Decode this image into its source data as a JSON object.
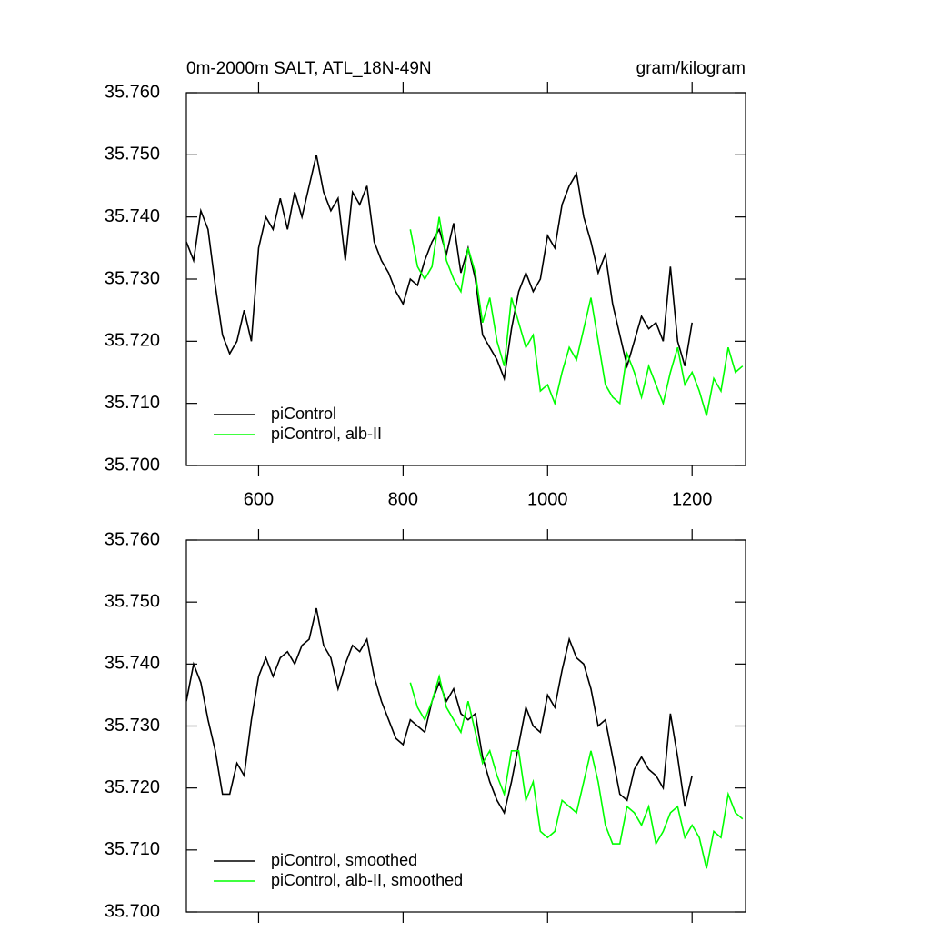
{
  "chart_data": [
    {
      "type": "line",
      "title": "0m-2000m SALT, ATL_18N-49N",
      "units": "gram/kilogram",
      "xlim": [
        500,
        1274
      ],
      "xticks": [
        600,
        800,
        1000,
        1200
      ],
      "show_xtick_labels": true,
      "ylim": [
        35.7,
        35.76
      ],
      "yticks": [
        {
          "value": 35.7,
          "label": "35.700"
        },
        {
          "value": 35.71,
          "label": "35.710"
        },
        {
          "value": 35.72,
          "label": "35.720"
        },
        {
          "value": 35.73,
          "label": "35.730"
        },
        {
          "value": 35.74,
          "label": "35.740"
        },
        {
          "value": 35.75,
          "label": "35.750"
        },
        {
          "value": 35.76,
          "label": "35.760"
        }
      ],
      "legend": "lower left",
      "series": [
        {
          "name": "piControl",
          "color": "#000000",
          "x": [
            500,
            510,
            520,
            530,
            540,
            550,
            560,
            570,
            580,
            590,
            600,
            610,
            620,
            630,
            640,
            650,
            660,
            670,
            680,
            690,
            700,
            710,
            720,
            730,
            740,
            750,
            760,
            770,
            780,
            790,
            800,
            810,
            820,
            830,
            840,
            850,
            860,
            870,
            880,
            890,
            900,
            910,
            920,
            930,
            940,
            950,
            960,
            970,
            980,
            990,
            1000,
            1010,
            1020,
            1030,
            1040,
            1050,
            1060,
            1070,
            1080,
            1090,
            1100,
            1110,
            1120,
            1130,
            1140,
            1150,
            1160,
            1170,
            1180,
            1190,
            1200
          ],
          "values": [
            35.736,
            35.733,
            35.741,
            35.738,
            35.729,
            35.721,
            35.718,
            35.72,
            35.725,
            35.72,
            35.735,
            35.74,
            35.738,
            35.743,
            35.738,
            35.744,
            35.74,
            35.745,
            35.75,
            35.744,
            35.741,
            35.743,
            35.733,
            35.744,
            35.742,
            35.745,
            35.736,
            35.733,
            35.731,
            35.728,
            35.726,
            35.73,
            35.729,
            35.733,
            35.736,
            35.738,
            35.734,
            35.739,
            35.731,
            35.735,
            35.73,
            35.721,
            35.719,
            35.717,
            35.714,
            35.722,
            35.728,
            35.731,
            35.728,
            35.73,
            35.737,
            35.735,
            35.742,
            35.745,
            35.747,
            35.74,
            35.736,
            35.731,
            35.734,
            35.726,
            35.721,
            35.716,
            35.72,
            35.724,
            35.722,
            35.723,
            35.72,
            35.732,
            35.72,
            35.716,
            35.723
          ]
        },
        {
          "name": "piControl, alb-II",
          "color": "#00ff00",
          "x": [
            810,
            820,
            830,
            840,
            850,
            860,
            870,
            880,
            890,
            900,
            910,
            920,
            930,
            940,
            950,
            960,
            970,
            980,
            990,
            1000,
            1010,
            1020,
            1030,
            1040,
            1050,
            1060,
            1070,
            1080,
            1090,
            1100,
            1110,
            1120,
            1130,
            1140,
            1150,
            1160,
            1170,
            1180,
            1190,
            1200,
            1210,
            1220,
            1230,
            1240,
            1250,
            1260,
            1270
          ],
          "values": [
            35.738,
            35.732,
            35.73,
            35.732,
            35.74,
            35.733,
            35.73,
            35.728,
            35.735,
            35.731,
            35.723,
            35.727,
            35.72,
            35.716,
            35.727,
            35.723,
            35.719,
            35.721,
            35.712,
            35.713,
            35.71,
            35.715,
            35.719,
            35.717,
            35.722,
            35.727,
            35.72,
            35.713,
            35.711,
            35.71,
            35.718,
            35.715,
            35.711,
            35.716,
            35.713,
            35.71,
            35.715,
            35.719,
            35.713,
            35.715,
            35.712,
            35.708,
            35.714,
            35.712,
            35.719,
            35.715,
            35.716
          ]
        }
      ]
    },
    {
      "type": "line",
      "xlim": [
        500,
        1274
      ],
      "xticks": [
        600,
        800,
        1000,
        1200
      ],
      "show_xtick_labels": false,
      "ylim": [
        35.7,
        35.76
      ],
      "yticks": [
        {
          "value": 35.7,
          "label": "35.700"
        },
        {
          "value": 35.71,
          "label": "35.710"
        },
        {
          "value": 35.72,
          "label": "35.720"
        },
        {
          "value": 35.73,
          "label": "35.730"
        },
        {
          "value": 35.74,
          "label": "35.740"
        },
        {
          "value": 35.75,
          "label": "35.750"
        },
        {
          "value": 35.76,
          "label": "35.760"
        }
      ],
      "legend": "lower left",
      "series": [
        {
          "name": "piControl, smoothed",
          "color": "#000000",
          "x": [
            500,
            510,
            520,
            530,
            540,
            550,
            560,
            570,
            580,
            590,
            600,
            610,
            620,
            630,
            640,
            650,
            660,
            670,
            680,
            690,
            700,
            710,
            720,
            730,
            740,
            750,
            760,
            770,
            780,
            790,
            800,
            810,
            820,
            830,
            840,
            850,
            860,
            870,
            880,
            890,
            900,
            910,
            920,
            930,
            940,
            950,
            960,
            970,
            980,
            990,
            1000,
            1010,
            1020,
            1030,
            1040,
            1050,
            1060,
            1070,
            1080,
            1090,
            1100,
            1110,
            1120,
            1130,
            1140,
            1150,
            1160,
            1170,
            1180,
            1190,
            1200
          ],
          "values": [
            35.734,
            35.74,
            35.737,
            35.731,
            35.726,
            35.719,
            35.719,
            35.724,
            35.722,
            35.731,
            35.738,
            35.741,
            35.738,
            35.741,
            35.742,
            35.74,
            35.743,
            35.744,
            35.749,
            35.743,
            35.741,
            35.736,
            35.74,
            35.743,
            35.742,
            35.744,
            35.738,
            35.734,
            35.731,
            35.728,
            35.727,
            35.731,
            35.73,
            35.729,
            35.734,
            35.737,
            35.734,
            35.736,
            35.732,
            35.731,
            35.732,
            35.725,
            35.721,
            35.718,
            35.716,
            35.721,
            35.727,
            35.733,
            35.73,
            35.729,
            35.735,
            35.733,
            35.739,
            35.744,
            35.741,
            35.74,
            35.736,
            35.73,
            35.731,
            35.725,
            35.719,
            35.718,
            35.723,
            35.725,
            35.723,
            35.722,
            35.72,
            35.732,
            35.725,
            35.717,
            35.722
          ]
        },
        {
          "name": "piControl, alb-II, smoothed",
          "color": "#00ff00",
          "x": [
            810,
            820,
            830,
            840,
            850,
            860,
            870,
            880,
            890,
            900,
            910,
            920,
            930,
            940,
            950,
            960,
            970,
            980,
            990,
            1000,
            1010,
            1020,
            1030,
            1040,
            1050,
            1060,
            1070,
            1080,
            1090,
            1100,
            1110,
            1120,
            1130,
            1140,
            1150,
            1160,
            1170,
            1180,
            1190,
            1200,
            1210,
            1220,
            1230,
            1240,
            1250,
            1260,
            1270
          ],
          "values": [
            35.737,
            35.733,
            35.731,
            35.734,
            35.738,
            35.733,
            35.731,
            35.729,
            35.734,
            35.729,
            35.724,
            35.726,
            35.722,
            35.719,
            35.726,
            35.726,
            35.718,
            35.721,
            35.713,
            35.712,
            35.713,
            35.718,
            35.717,
            35.716,
            35.721,
            35.726,
            35.721,
            35.714,
            35.711,
            35.711,
            35.717,
            35.716,
            35.714,
            35.717,
            35.711,
            35.713,
            35.716,
            35.717,
            35.712,
            35.714,
            35.712,
            35.707,
            35.713,
            35.712,
            35.719,
            35.716,
            35.715
          ]
        }
      ]
    }
  ]
}
